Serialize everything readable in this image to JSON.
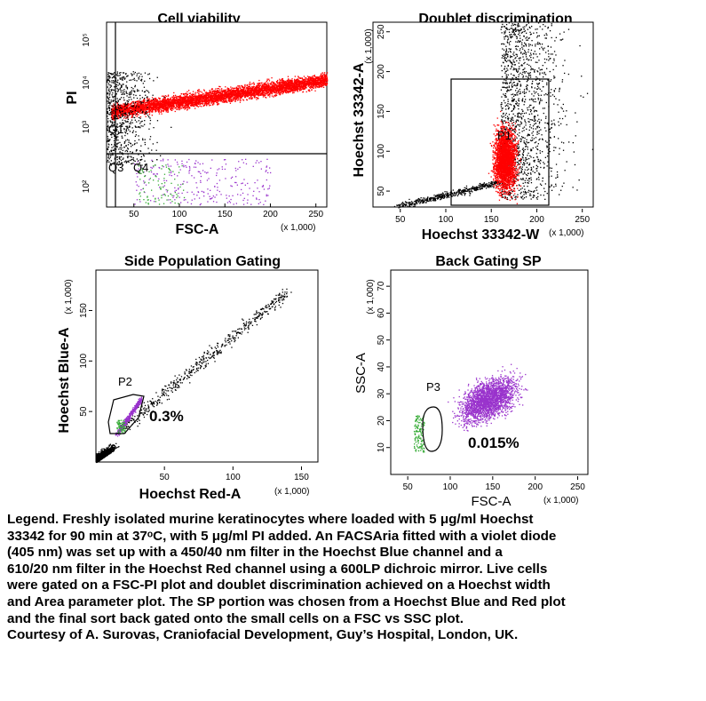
{
  "chart_data": [
    {
      "type": "scatter",
      "title": "Cell viability",
      "xlabel": "FSC-A",
      "ylabel": "PI",
      "x_multiplier_label": "(x 1,000)",
      "xlim": [
        20,
        262
      ],
      "x_ticks": [
        "50",
        "100",
        "150",
        "200",
        "250"
      ],
      "y_scale": "log",
      "y_ticks": [
        "10⁵",
        "10⁴",
        "10³",
        "10²"
      ],
      "gates": [
        "Q1",
        "Q3",
        "Q4"
      ],
      "series": [
        {
          "color": "#ff0000",
          "description_region": "PI-high band",
          "x_range": [
            25,
            262
          ],
          "y_range": [
            300,
            15000
          ]
        },
        {
          "color": "#000000",
          "description_region": "low FSC/PI cells",
          "x_range": [
            20,
            80
          ],
          "y_range": [
            20,
            3000
          ]
        },
        {
          "color": "#9933cc",
          "description_region": "Q4 events",
          "x_range": [
            40,
            200
          ],
          "y_range": [
            10,
            80
          ]
        },
        {
          "color": "#33aa33",
          "description_region": "Q4 events",
          "x_range": [
            50,
            110
          ],
          "y_range": [
            10,
            60
          ]
        }
      ]
    },
    {
      "type": "scatter",
      "title": "Doublet discrimination",
      "xlabel": "Hoechst 33342-W",
      "ylabel": "Hoechst 33342-A",
      "x_multiplier_label": "(x 1,000)",
      "y_multiplier_label": "(x 1,000)",
      "xlim": [
        20,
        262
      ],
      "ylim": [
        30,
        262
      ],
      "x_ticks": [
        "50",
        "100",
        "150",
        "200",
        "250"
      ],
      "y_ticks": [
        "50",
        "100",
        "150",
        "200",
        "250"
      ],
      "gates": [
        "P1"
      ],
      "series": [
        {
          "color": "#ff0000",
          "x_range": [
            140,
            205
          ],
          "y_range": [
            40,
            170
          ]
        },
        {
          "color": "#000000",
          "x_range": [
            30,
            262
          ],
          "y_range": [
            30,
            262
          ]
        }
      ]
    },
    {
      "type": "scatter",
      "title": "Side Population Gating",
      "xlabel": "Hoechst Red-A",
      "ylabel": "Hoechst Blue-A",
      "x_multiplier_label": "(x 1,000)",
      "y_multiplier_label": "(x 1,000)",
      "xlim": [
        0,
        162
      ],
      "ylim": [
        0,
        190
      ],
      "x_ticks": [
        "50",
        "100",
        "150"
      ],
      "y_ticks": [
        "50",
        "100",
        "150"
      ],
      "gates": [
        "P2"
      ],
      "annotations": [
        "0.3%"
      ],
      "series": [
        {
          "color": "#000000",
          "x_range": [
            0,
            140
          ],
          "y_range": [
            0,
            175
          ]
        },
        {
          "color": "#9933cc",
          "x_range": [
            14,
            32
          ],
          "y_range": [
            25,
            65
          ]
        },
        {
          "color": "#33aa33",
          "x_range": [
            14,
            22
          ],
          "y_range": [
            25,
            45
          ]
        }
      ]
    },
    {
      "type": "scatter",
      "title": "Back Gating SP",
      "xlabel": "FSC-A",
      "ylabel": "SSC-A",
      "x_multiplier_label": "(x 1,000)",
      "y_multiplier_label": "(x 1,000)",
      "xlim": [
        30,
        262
      ],
      "ylim": [
        0,
        76
      ],
      "x_ticks": [
        "50",
        "100",
        "150",
        "200",
        "250"
      ],
      "y_ticks": [
        "10",
        "20",
        "30",
        "40",
        "50",
        "60",
        "70"
      ],
      "gates": [
        "P3"
      ],
      "annotations": [
        "0.015%"
      ],
      "series": [
        {
          "color": "#9933cc",
          "x_range": [
            60,
            230
          ],
          "y_range": [
            10,
            50
          ]
        },
        {
          "color": "#33aa33",
          "x_range": [
            55,
            72
          ],
          "y_range": [
            8,
            20
          ]
        }
      ]
    }
  ],
  "legend_text": [
    "Legend. Freshly isolated murine keratinocytes where loaded with 5 μg/ml Hoechst",
    "33342 for 90 min at 37ᵒC, with 5 μg/ml PI added. An FACSAria fitted with a violet diode",
    "(405 nm) was set up with a 450/40 nm filter in the Hoechst Blue channel and a",
    "610/20 nm filter in the Hoechst Red channel using a 600LP dichroic mirror. Live cells",
    "were gated on a FSC-PI plot and doublet discrimination achieved on a Hoechst width",
    "and Area parameter plot. The SP portion was chosen from a Hoechst Blue and Red plot",
    "and the final sort back gated onto the small cells on a FSC vs SSC plot.",
    "Courtesy of A. Surovas, Craniofacial Development, Guy’s Hospital, London, UK."
  ]
}
